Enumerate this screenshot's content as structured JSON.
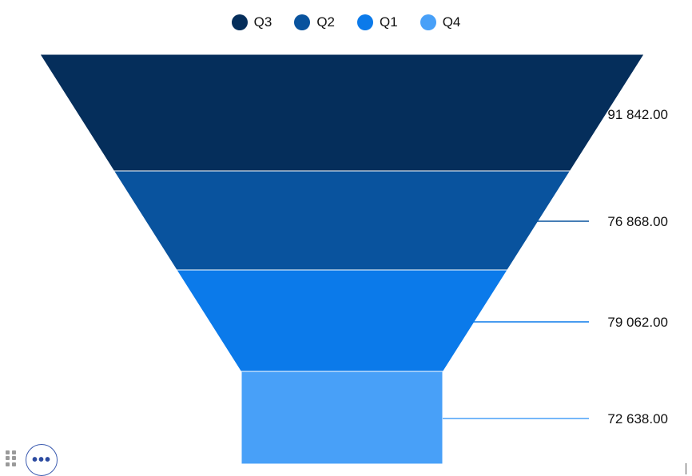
{
  "legend": [
    {
      "label": "Q3",
      "color": "#052E5B"
    },
    {
      "label": "Q2",
      "color": "#09539E"
    },
    {
      "label": "Q1",
      "color": "#0B7AEA"
    },
    {
      "label": "Q4",
      "color": "#48A0F8"
    }
  ],
  "chart_data": {
    "type": "funnel",
    "categories": [
      "Q3",
      "Q2",
      "Q1",
      "Q4"
    ],
    "values": [
      91842.0,
      76868.0,
      79062.0,
      72638.0
    ],
    "value_labels": [
      "91 842.00",
      "76 868.00",
      "79 062.00",
      "72 638.00"
    ],
    "colors": [
      "#052E5B",
      "#09539E",
      "#0B7AEA",
      "#48A0F8"
    ],
    "legend_position": "top"
  },
  "controls": {
    "more_label": "•••",
    "drag_handle_icon": "drag-dots-icon",
    "more_icon": "ellipsis-icon"
  }
}
